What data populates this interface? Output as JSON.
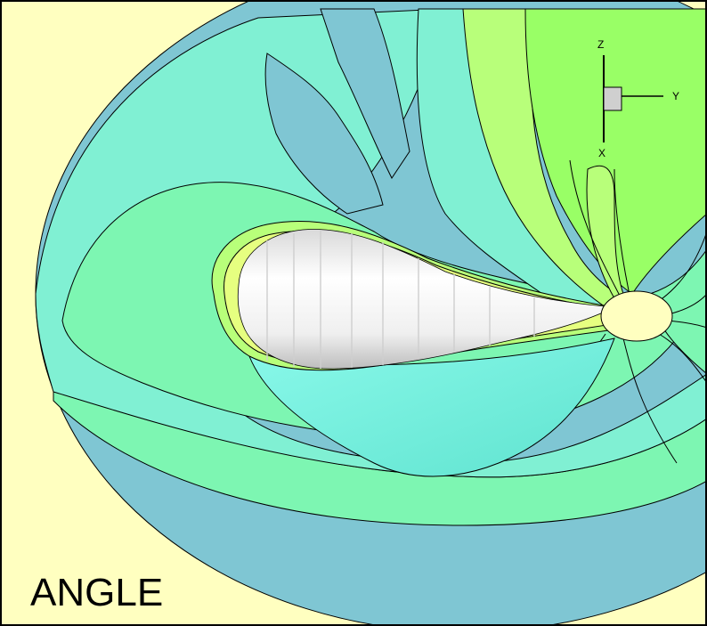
{
  "plot": {
    "label": "ANGLE",
    "axes": {
      "z": "Z",
      "y": "Y",
      "x": "X"
    }
  },
  "colors": {
    "background": "#ffffc0",
    "teal_dark": "#7fc6d3",
    "aqua": "#80f0d3",
    "mint": "#7df6b2",
    "cyan_bright": "#7ff7e6",
    "green_light": "#b8ff7a",
    "green": "#99ff66",
    "yellow_green": "#e6ff80",
    "body": "#ffffff",
    "contour": "#000000"
  }
}
